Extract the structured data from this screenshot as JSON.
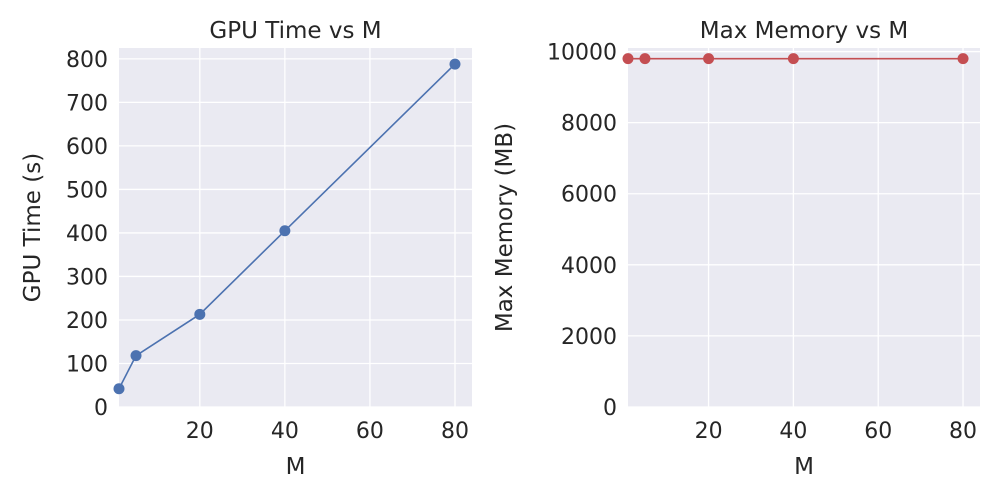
{
  "chart_data": [
    {
      "type": "line",
      "title": "GPU Time vs M",
      "xlabel": "M",
      "ylabel": "GPU Time (s)",
      "x": [
        1,
        5,
        20,
        40,
        80
      ],
      "series": [
        {
          "values": [
            42,
            118,
            213,
            405,
            788
          ],
          "color": "#4c72b0"
        }
      ],
      "xlim": [
        1,
        84
      ],
      "ylim": [
        0,
        825
      ],
      "xticks": [
        20,
        40,
        60,
        80
      ],
      "yticks": [
        0,
        100,
        200,
        300,
        400,
        500,
        600,
        700,
        800
      ],
      "grid": true
    },
    {
      "type": "line",
      "title": "Max Memory vs M",
      "xlabel": "M",
      "ylabel": "Max Memory (MB)",
      "x": [
        1,
        5,
        20,
        40,
        80
      ],
      "series": [
        {
          "values": [
            9800,
            9800,
            9800,
            9800,
            9800
          ],
          "color": "#c44e52"
        }
      ],
      "xlim": [
        1,
        84
      ],
      "ylim": [
        0,
        10100
      ],
      "xticks": [
        20,
        40,
        60,
        80
      ],
      "yticks": [
        0,
        2000,
        4000,
        6000,
        8000,
        10000
      ],
      "grid": true
    }
  ]
}
